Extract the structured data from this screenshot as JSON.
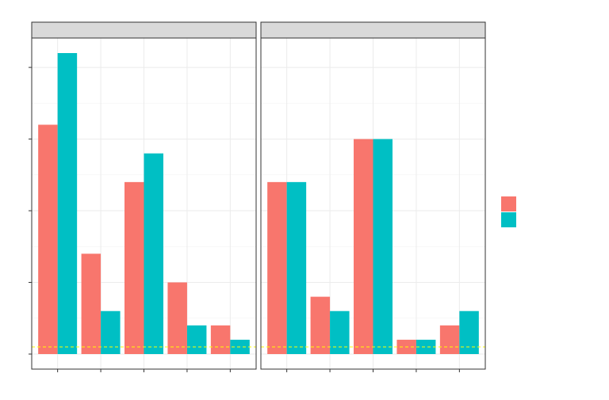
{
  "chart_data": [
    {
      "type": "bar",
      "categories": [
        null,
        null,
        null,
        null,
        null
      ],
      "series": [
        {
          "color": "#F8766D",
          "values": [
            3.2,
            1.4,
            2.4,
            1.0,
            0.4
          ]
        },
        {
          "color": "#00BFC4",
          "values": [
            4.2,
            0.6,
            2.8,
            0.4,
            0.2
          ]
        }
      ],
      "ylim": [
        -0.21,
        4.41
      ],
      "yticks": [
        0,
        1,
        2,
        3,
        4
      ],
      "yminor": [
        0.5,
        1.5,
        2.5,
        3.5
      ],
      "grid": true,
      "hline": 0.1,
      "hline_color": "#FFFF00",
      "legend": "right"
    },
    {
      "type": "bar",
      "categories": [
        null,
        null,
        null,
        null,
        null
      ],
      "series": [
        {
          "color": "#F8766D",
          "values": [
            2.4,
            0.8,
            3.0,
            0.2,
            0.4
          ]
        },
        {
          "color": "#00BFC4",
          "values": [
            2.4,
            0.6,
            3.0,
            0.2,
            0.6
          ]
        }
      ],
      "ylim": [
        -0.21,
        4.41
      ],
      "yticks": [
        0,
        1,
        2,
        3,
        4
      ],
      "yminor": [
        0.5,
        1.5,
        2.5,
        3.5
      ],
      "grid": true,
      "hline": 0.1,
      "hline_color": "#FFFF00",
      "legend": "right"
    }
  ]
}
